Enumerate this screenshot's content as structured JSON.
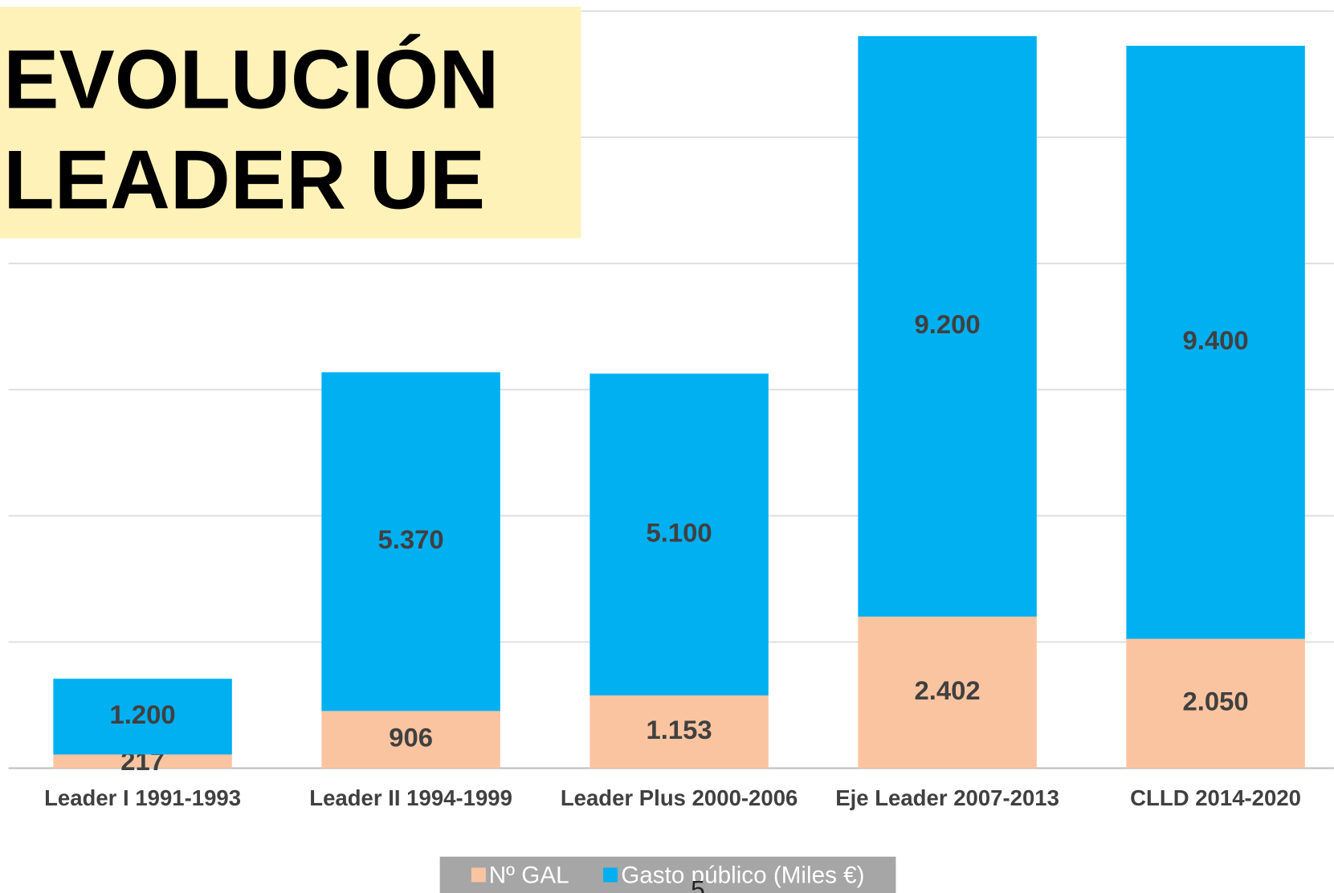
{
  "chart_data": {
    "type": "stacked_bar",
    "title": "EVOLUCIÓN LEADER UE",
    "categories": [
      "Leader I 1991-1993",
      "Leader II 1994-1999",
      "Leader Plus 2000-2006",
      "Eje Leader 2007-2013",
      "CLLD 2014-2020"
    ],
    "series": [
      {
        "name": "Nº GAL",
        "color": "#fbc4a0",
        "values": [
          217,
          906,
          1153,
          2402,
          2050
        ],
        "value_labels": [
          "217",
          "906",
          "1.153",
          "2.402",
          "2.050"
        ]
      },
      {
        "name": "Gasto público (Miles €)",
        "color": "#00b0f0",
        "values": [
          1200,
          5370,
          5100,
          9200,
          9400
        ],
        "value_labels": [
          "1.200",
          "5.370",
          "5.100",
          "9.200",
          "9.400"
        ]
      }
    ],
    "ylim": [
      0,
      12000
    ],
    "yticks": [
      0,
      2000,
      4000,
      6000,
      8000,
      10000,
      12000
    ],
    "grid": true,
    "legend": "bottom",
    "page_number": "5"
  }
}
